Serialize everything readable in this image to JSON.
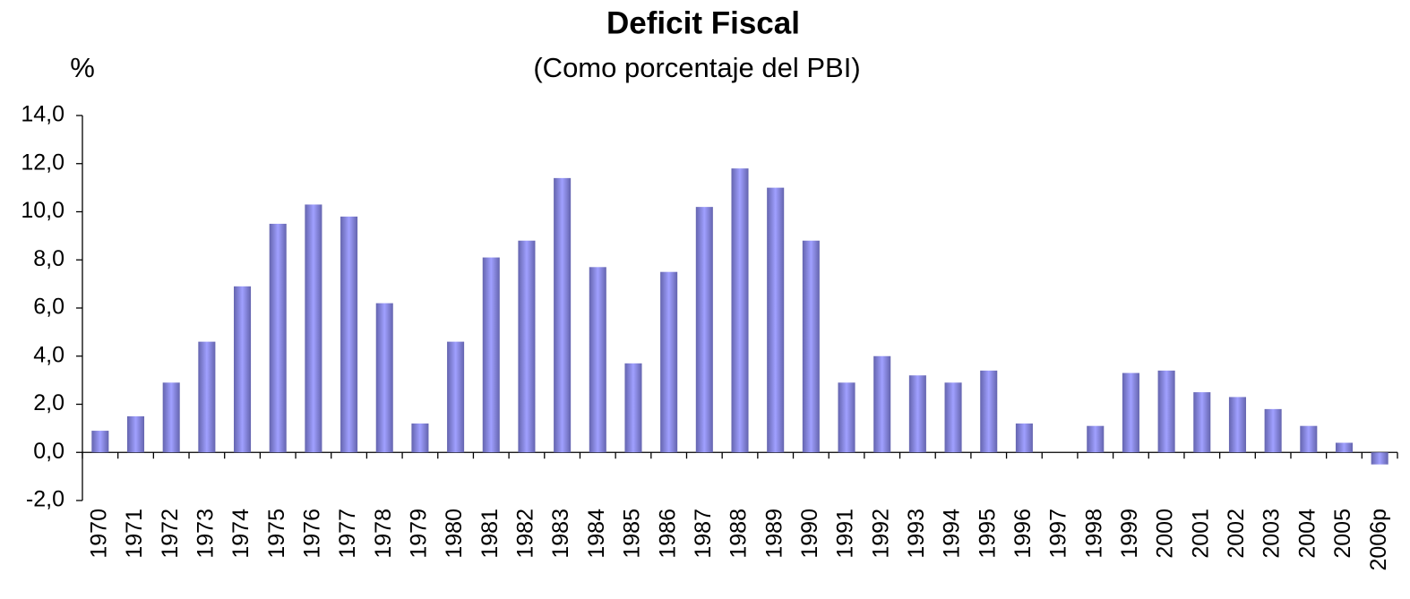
{
  "chart_data": {
    "type": "bar",
    "title": "Deficit Fiscal",
    "subtitle": "(Como porcentaje del PBI)",
    "y_label": "%",
    "categories": [
      "1970",
      "1971",
      "1972",
      "1973",
      "1974",
      "1975",
      "1976",
      "1977",
      "1978",
      "1979",
      "1980",
      "1981",
      "1982",
      "1983",
      "1984",
      "1985",
      "1986",
      "1987",
      "1988",
      "1989",
      "1990",
      "1991",
      "1992",
      "1993",
      "1994",
      "1995",
      "1996",
      "1997",
      "1998",
      "1999",
      "2000",
      "2001",
      "2002",
      "2003",
      "2004",
      "2005",
      "2006p"
    ],
    "values": [
      0.9,
      1.5,
      2.9,
      4.6,
      6.9,
      9.5,
      10.3,
      9.8,
      6.2,
      1.2,
      4.6,
      8.1,
      8.8,
      11.4,
      7.7,
      3.7,
      7.5,
      10.2,
      11.8,
      11.0,
      8.8,
      2.9,
      4.0,
      3.2,
      2.9,
      3.4,
      1.2,
      null,
      1.1,
      3.3,
      3.4,
      2.5,
      2.3,
      1.8,
      1.1,
      0.4,
      -0.5
    ],
    "color": "#6464ae",
    "highlight_color": "#a0a0ff",
    "ylim": [
      -2,
      14
    ],
    "yticks": [
      {
        "value": -2,
        "label": "-2,0"
      },
      {
        "value": 0,
        "label": "0,0"
      },
      {
        "value": 2,
        "label": "2,0"
      },
      {
        "value": 4,
        "label": "4,0"
      },
      {
        "value": 6,
        "label": "6,0"
      },
      {
        "value": 8,
        "label": "8,0"
      },
      {
        "value": 10,
        "label": "10,0"
      },
      {
        "value": 12,
        "label": "12,0"
      },
      {
        "value": 14,
        "label": "14,0"
      }
    ],
    "grid": false
  }
}
